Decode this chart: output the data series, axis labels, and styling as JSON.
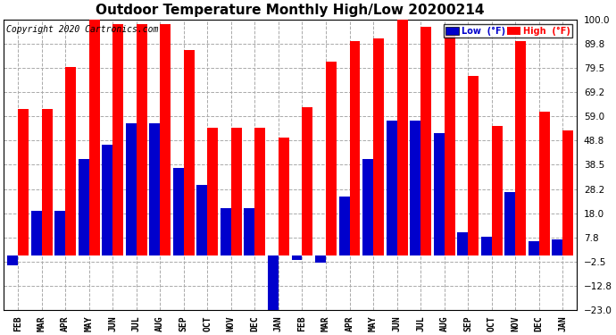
{
  "title": "Outdoor Temperature Monthly High/Low 20200214",
  "copyright": "Copyright 2020 Cartronics.com",
  "legend_low": "Low  (°F)",
  "legend_high": "High  (°F)",
  "months": [
    "FEB",
    "MAR",
    "APR",
    "MAY",
    "JUN",
    "JUL",
    "AUG",
    "SEP",
    "OCT",
    "NOV",
    "DEC",
    "JAN",
    "FEB",
    "MAR",
    "APR",
    "MAY",
    "JUN",
    "JUL",
    "AUG",
    "SEP",
    "OCT",
    "NOV",
    "DEC",
    "JAN"
  ],
  "high_values": [
    62,
    62,
    80,
    104,
    98,
    98,
    98,
    87,
    54,
    54,
    54,
    50,
    63,
    82,
    91,
    92,
    100,
    97,
    93,
    76,
    55,
    91,
    61,
    53
  ],
  "low_values": [
    -4,
    19,
    19,
    41,
    47,
    56,
    56,
    37,
    30,
    20,
    20,
    -23,
    -2,
    -3,
    25,
    41,
    57,
    57,
    52,
    10,
    8,
    27,
    6,
    7
  ],
  "ylim": [
    -23,
    100
  ],
  "yticks": [
    -23.0,
    -12.8,
    -2.5,
    7.8,
    18.0,
    28.2,
    38.5,
    48.8,
    59.0,
    69.2,
    79.5,
    89.8,
    100.0
  ],
  "bar_color_high": "#ff0000",
  "bar_color_low": "#0000cc",
  "background_color": "#ffffff",
  "title_fontsize": 11,
  "copyright_fontsize": 7,
  "bar_width": 0.45
}
